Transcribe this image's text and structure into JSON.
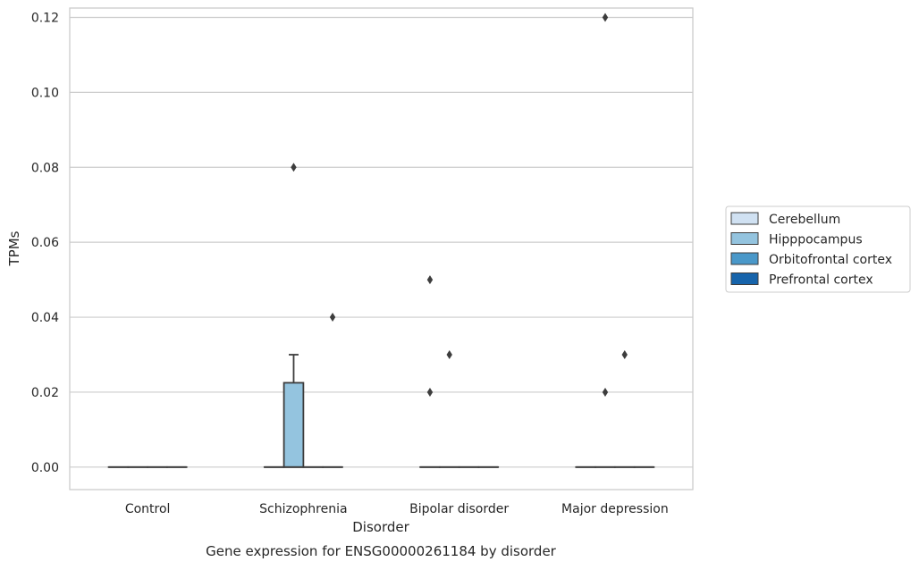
{
  "chart_data": {
    "type": "box",
    "caption": "Gene expression for ENSG00000261184 by disorder",
    "xlabel": "Disorder",
    "ylabel": "TPMs",
    "categories": [
      "Control",
      "Schizophrenia",
      "Bipolar disorder",
      "Major depression"
    ],
    "ylim": [
      -0.006,
      0.1225
    ],
    "yticks": [
      0.0,
      0.02,
      0.04,
      0.06,
      0.08,
      0.1,
      0.12
    ],
    "ytick_labels": [
      "0.00",
      "0.02",
      "0.04",
      "0.06",
      "0.08",
      "0.10",
      "0.12"
    ],
    "grid": true,
    "legend_position": "right",
    "hue": [
      "Cerebellum",
      "Hipppocampus",
      "Orbitofrontal cortex",
      "Prefrontal cortex"
    ],
    "colors": [
      "#d0e1f2",
      "#94c4df",
      "#4a98c9",
      "#1764ab"
    ],
    "boxes": [
      {
        "category": "Control",
        "hue": "Cerebellum",
        "q1": 0,
        "median": 0,
        "q3": 0,
        "whisker_low": 0,
        "whisker_high": 0,
        "outliers": []
      },
      {
        "category": "Control",
        "hue": "Hipppocampus",
        "q1": 0,
        "median": 0,
        "q3": 0,
        "whisker_low": 0,
        "whisker_high": 0,
        "outliers": []
      },
      {
        "category": "Control",
        "hue": "Orbitofrontal cortex",
        "q1": 0,
        "median": 0,
        "q3": 0,
        "whisker_low": 0,
        "whisker_high": 0,
        "outliers": []
      },
      {
        "category": "Control",
        "hue": "Prefrontal cortex",
        "q1": 0,
        "median": 0,
        "q3": 0,
        "whisker_low": 0,
        "whisker_high": 0,
        "outliers": []
      },
      {
        "category": "Schizophrenia",
        "hue": "Cerebellum",
        "q1": 0,
        "median": 0,
        "q3": 0,
        "whisker_low": 0,
        "whisker_high": 0,
        "outliers": []
      },
      {
        "category": "Schizophrenia",
        "hue": "Hipppocampus",
        "q1": 0,
        "median": 0,
        "q3": 0.0225,
        "whisker_low": 0,
        "whisker_high": 0.03,
        "outliers": [
          0.08
        ]
      },
      {
        "category": "Schizophrenia",
        "hue": "Orbitofrontal cortex",
        "q1": 0,
        "median": 0,
        "q3": 0,
        "whisker_low": 0,
        "whisker_high": 0,
        "outliers": []
      },
      {
        "category": "Schizophrenia",
        "hue": "Prefrontal cortex",
        "q1": 0,
        "median": 0,
        "q3": 0,
        "whisker_low": 0,
        "whisker_high": 0,
        "outliers": [
          0.04
        ]
      },
      {
        "category": "Bipolar disorder",
        "hue": "Cerebellum",
        "q1": 0,
        "median": 0,
        "q3": 0,
        "whisker_low": 0,
        "whisker_high": 0,
        "outliers": [
          0.05,
          0.02
        ]
      },
      {
        "category": "Bipolar disorder",
        "hue": "Hipppocampus",
        "q1": 0,
        "median": 0,
        "q3": 0,
        "whisker_low": 0,
        "whisker_high": 0,
        "outliers": [
          0.03
        ]
      },
      {
        "category": "Bipolar disorder",
        "hue": "Orbitofrontal cortex",
        "q1": 0,
        "median": 0,
        "q3": 0,
        "whisker_low": 0,
        "whisker_high": 0,
        "outliers": []
      },
      {
        "category": "Bipolar disorder",
        "hue": "Prefrontal cortex",
        "q1": 0,
        "median": 0,
        "q3": 0,
        "whisker_low": 0,
        "whisker_high": 0,
        "outliers": []
      },
      {
        "category": "Major depression",
        "hue": "Cerebellum",
        "q1": 0,
        "median": 0,
        "q3": 0,
        "whisker_low": 0,
        "whisker_high": 0,
        "outliers": []
      },
      {
        "category": "Major depression",
        "hue": "Hipppocampus",
        "q1": 0,
        "median": 0,
        "q3": 0,
        "whisker_low": 0,
        "whisker_high": 0,
        "outliers": [
          0.12,
          0.02
        ]
      },
      {
        "category": "Major depression",
        "hue": "Orbitofrontal cortex",
        "q1": 0,
        "median": 0,
        "q3": 0,
        "whisker_low": 0,
        "whisker_high": 0,
        "outliers": [
          0.03
        ]
      },
      {
        "category": "Major depression",
        "hue": "Prefrontal cortex",
        "q1": 0,
        "median": 0,
        "q3": 0,
        "whisker_low": 0,
        "whisker_high": 0,
        "outliers": []
      }
    ]
  }
}
